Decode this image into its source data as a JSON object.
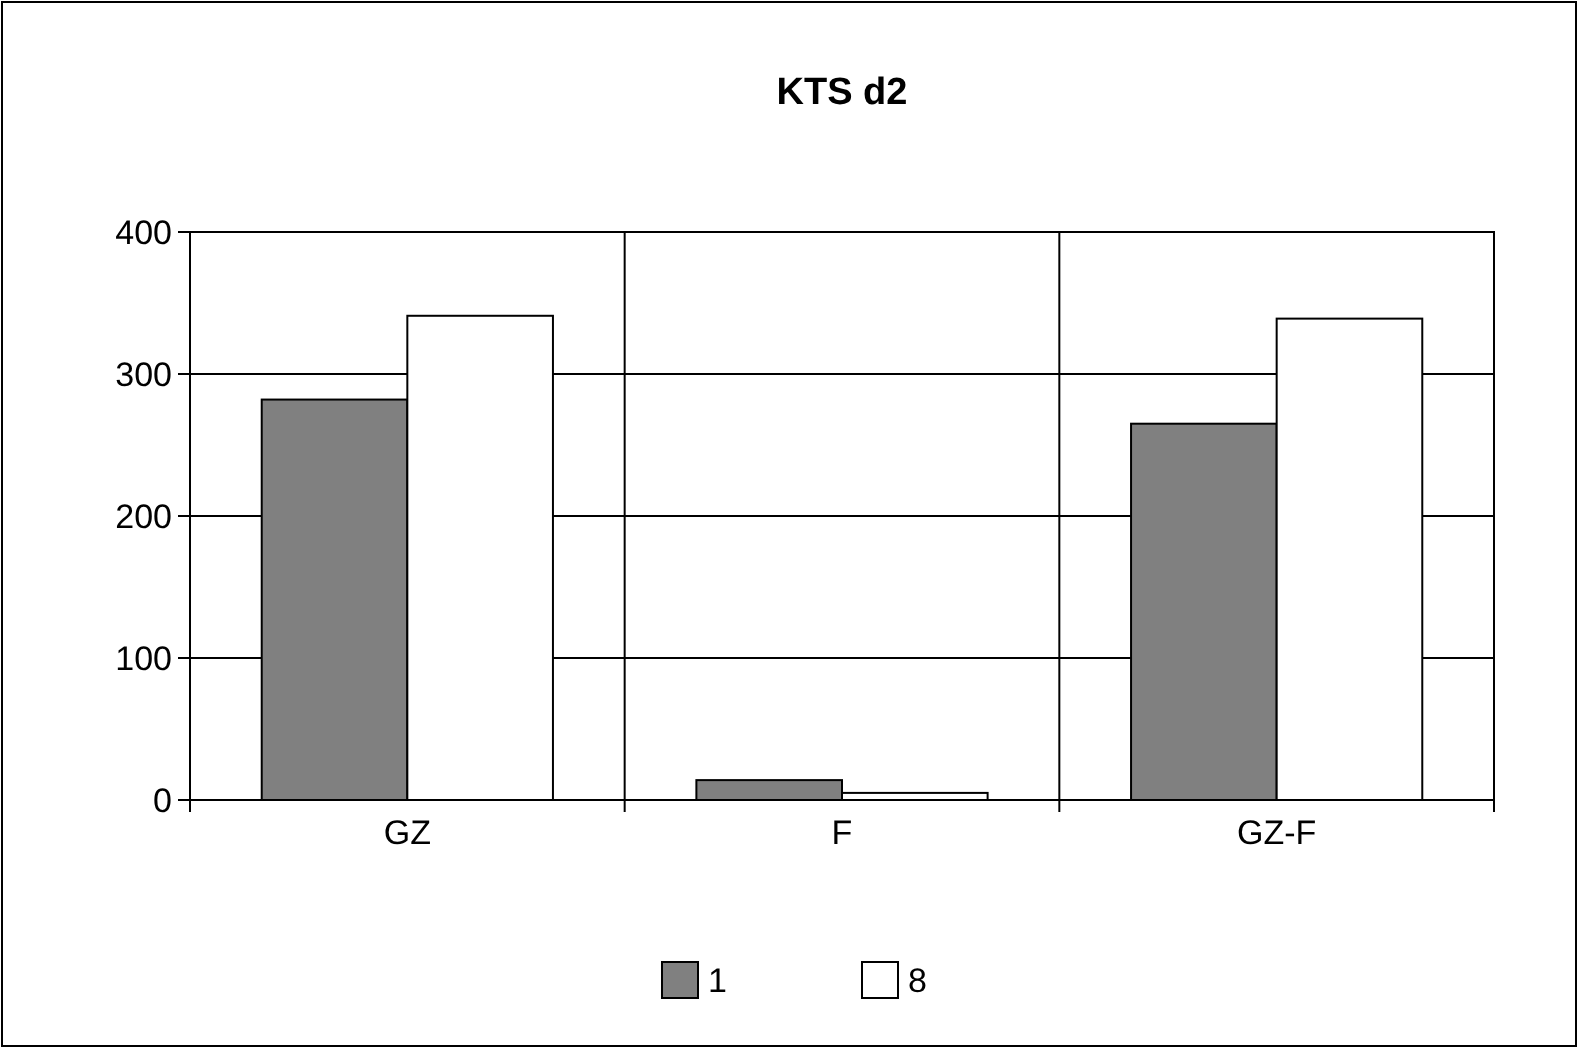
{
  "chart_data": {
    "type": "bar",
    "title": "KTS d2",
    "categories": [
      "GZ",
      "F",
      "GZ-F"
    ],
    "series": [
      {
        "name": "1",
        "color": "#808080",
        "values": [
          282,
          14,
          265
        ]
      },
      {
        "name": "8",
        "color": "#ffffff",
        "values": [
          341,
          5,
          339
        ]
      }
    ],
    "ylim": [
      0,
      400
    ],
    "yticks": [
      0,
      100,
      200,
      300,
      400
    ],
    "grid": true,
    "legend": "bottom"
  }
}
